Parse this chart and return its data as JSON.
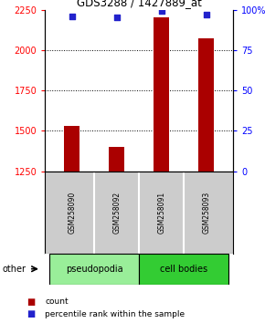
{
  "title": "GDS3288 / 1427889_at",
  "samples": [
    "GSM258090",
    "GSM258092",
    "GSM258091",
    "GSM258093"
  ],
  "count_values": [
    1530,
    1400,
    2200,
    2075
  ],
  "percentile_values": [
    96,
    95,
    99,
    97
  ],
  "ylim_left": [
    1250,
    2250
  ],
  "ylim_right": [
    0,
    100
  ],
  "yticks_left": [
    1250,
    1500,
    1750,
    2000,
    2250
  ],
  "yticks_right": [
    0,
    25,
    50,
    75,
    100
  ],
  "ytick_labels_right": [
    "0",
    "25",
    "50",
    "75",
    "100%"
  ],
  "bar_color": "#aa0000",
  "dot_color": "#2222cc",
  "bar_width": 0.35,
  "groups": [
    {
      "label": "pseudopodia",
      "samples": [
        0,
        1
      ],
      "color": "#99ee99"
    },
    {
      "label": "cell bodies",
      "samples": [
        2,
        3
      ],
      "color": "#33cc33"
    }
  ],
  "other_label": "other",
  "legend_count_label": "count",
  "legend_percentile_label": "percentile rank within the sample",
  "background_color": "#ffffff",
  "sample_box_color": "#cccccc"
}
